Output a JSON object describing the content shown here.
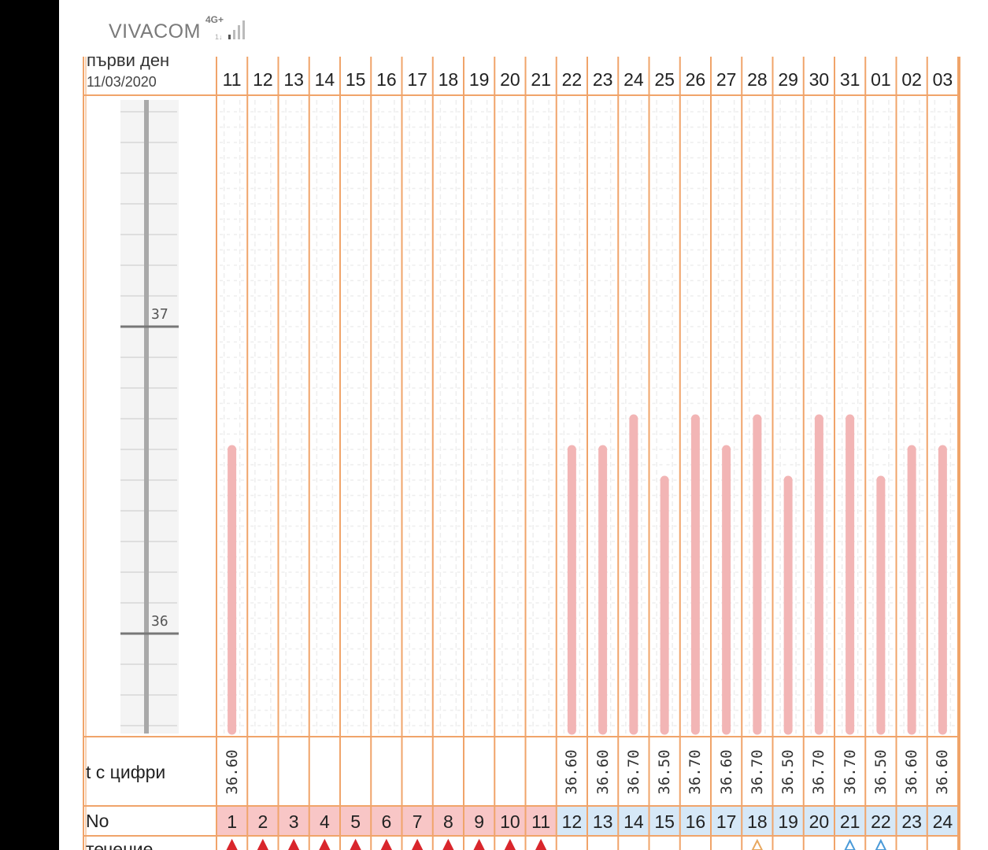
{
  "status_bar": {
    "carrier": "VIVACOM",
    "network_type": "4G+",
    "signal_icon": "signal-bars-icon"
  },
  "chart_header": {
    "first_day_label": "първи ден",
    "first_day_date": "11/03/2020"
  },
  "row_labels": {
    "temperature_digits": "t с цифри",
    "number": "No",
    "flow": "течение"
  },
  "colors": {
    "grid_line": "#f0a46a",
    "bar": "#f2b5b5",
    "period_cell": "#f8c6c6",
    "cycle_cell": "#d6e8f7",
    "flow_icon": "#d9262c",
    "egg_white_icon": "#4a9ad8",
    "watery_icon": "#e8a860"
  },
  "scale": {
    "labels": [
      "37",
      "36"
    ]
  },
  "chart_data": {
    "type": "bar",
    "days": [
      "11",
      "12",
      "13",
      "14",
      "15",
      "16",
      "17",
      "18",
      "19",
      "20",
      "21",
      "22",
      "23",
      "24",
      "25",
      "26",
      "27",
      "28",
      "29",
      "30",
      "31",
      "01",
      "02",
      "03"
    ],
    "temperatures": [
      36.6,
      null,
      null,
      null,
      null,
      null,
      null,
      null,
      null,
      null,
      null,
      36.6,
      36.6,
      36.7,
      36.5,
      36.7,
      36.6,
      36.7,
      36.5,
      36.7,
      36.7,
      36.5,
      36.6,
      36.6
    ],
    "temperature_labels": [
      "36.60",
      "",
      "",
      "",
      "",
      "",
      "",
      "",
      "",
      "",
      "",
      "36.60",
      "36.60",
      "36.70",
      "36.50",
      "36.70",
      "36.60",
      "36.70",
      "36.50",
      "36.70",
      "36.70",
      "36.50",
      "36.60",
      "36.60"
    ],
    "cycle_numbers": [
      "1",
      "2",
      "3",
      "4",
      "5",
      "6",
      "7",
      "8",
      "9",
      "10",
      "11",
      "12",
      "13",
      "14",
      "15",
      "16",
      "17",
      "18",
      "19",
      "20",
      "21",
      "22",
      "23",
      "24"
    ],
    "period_days": 11,
    "flow_markers": [
      "blood",
      "blood",
      "blood",
      "blood",
      "blood",
      "blood",
      "blood",
      "blood",
      "blood",
      "blood",
      "blood",
      "",
      "",
      "",
      "",
      "",
      "",
      "watery",
      "",
      "",
      "egg-white",
      "egg-white",
      "",
      ""
    ],
    "ylim": [
      35.7,
      37.7
    ]
  }
}
